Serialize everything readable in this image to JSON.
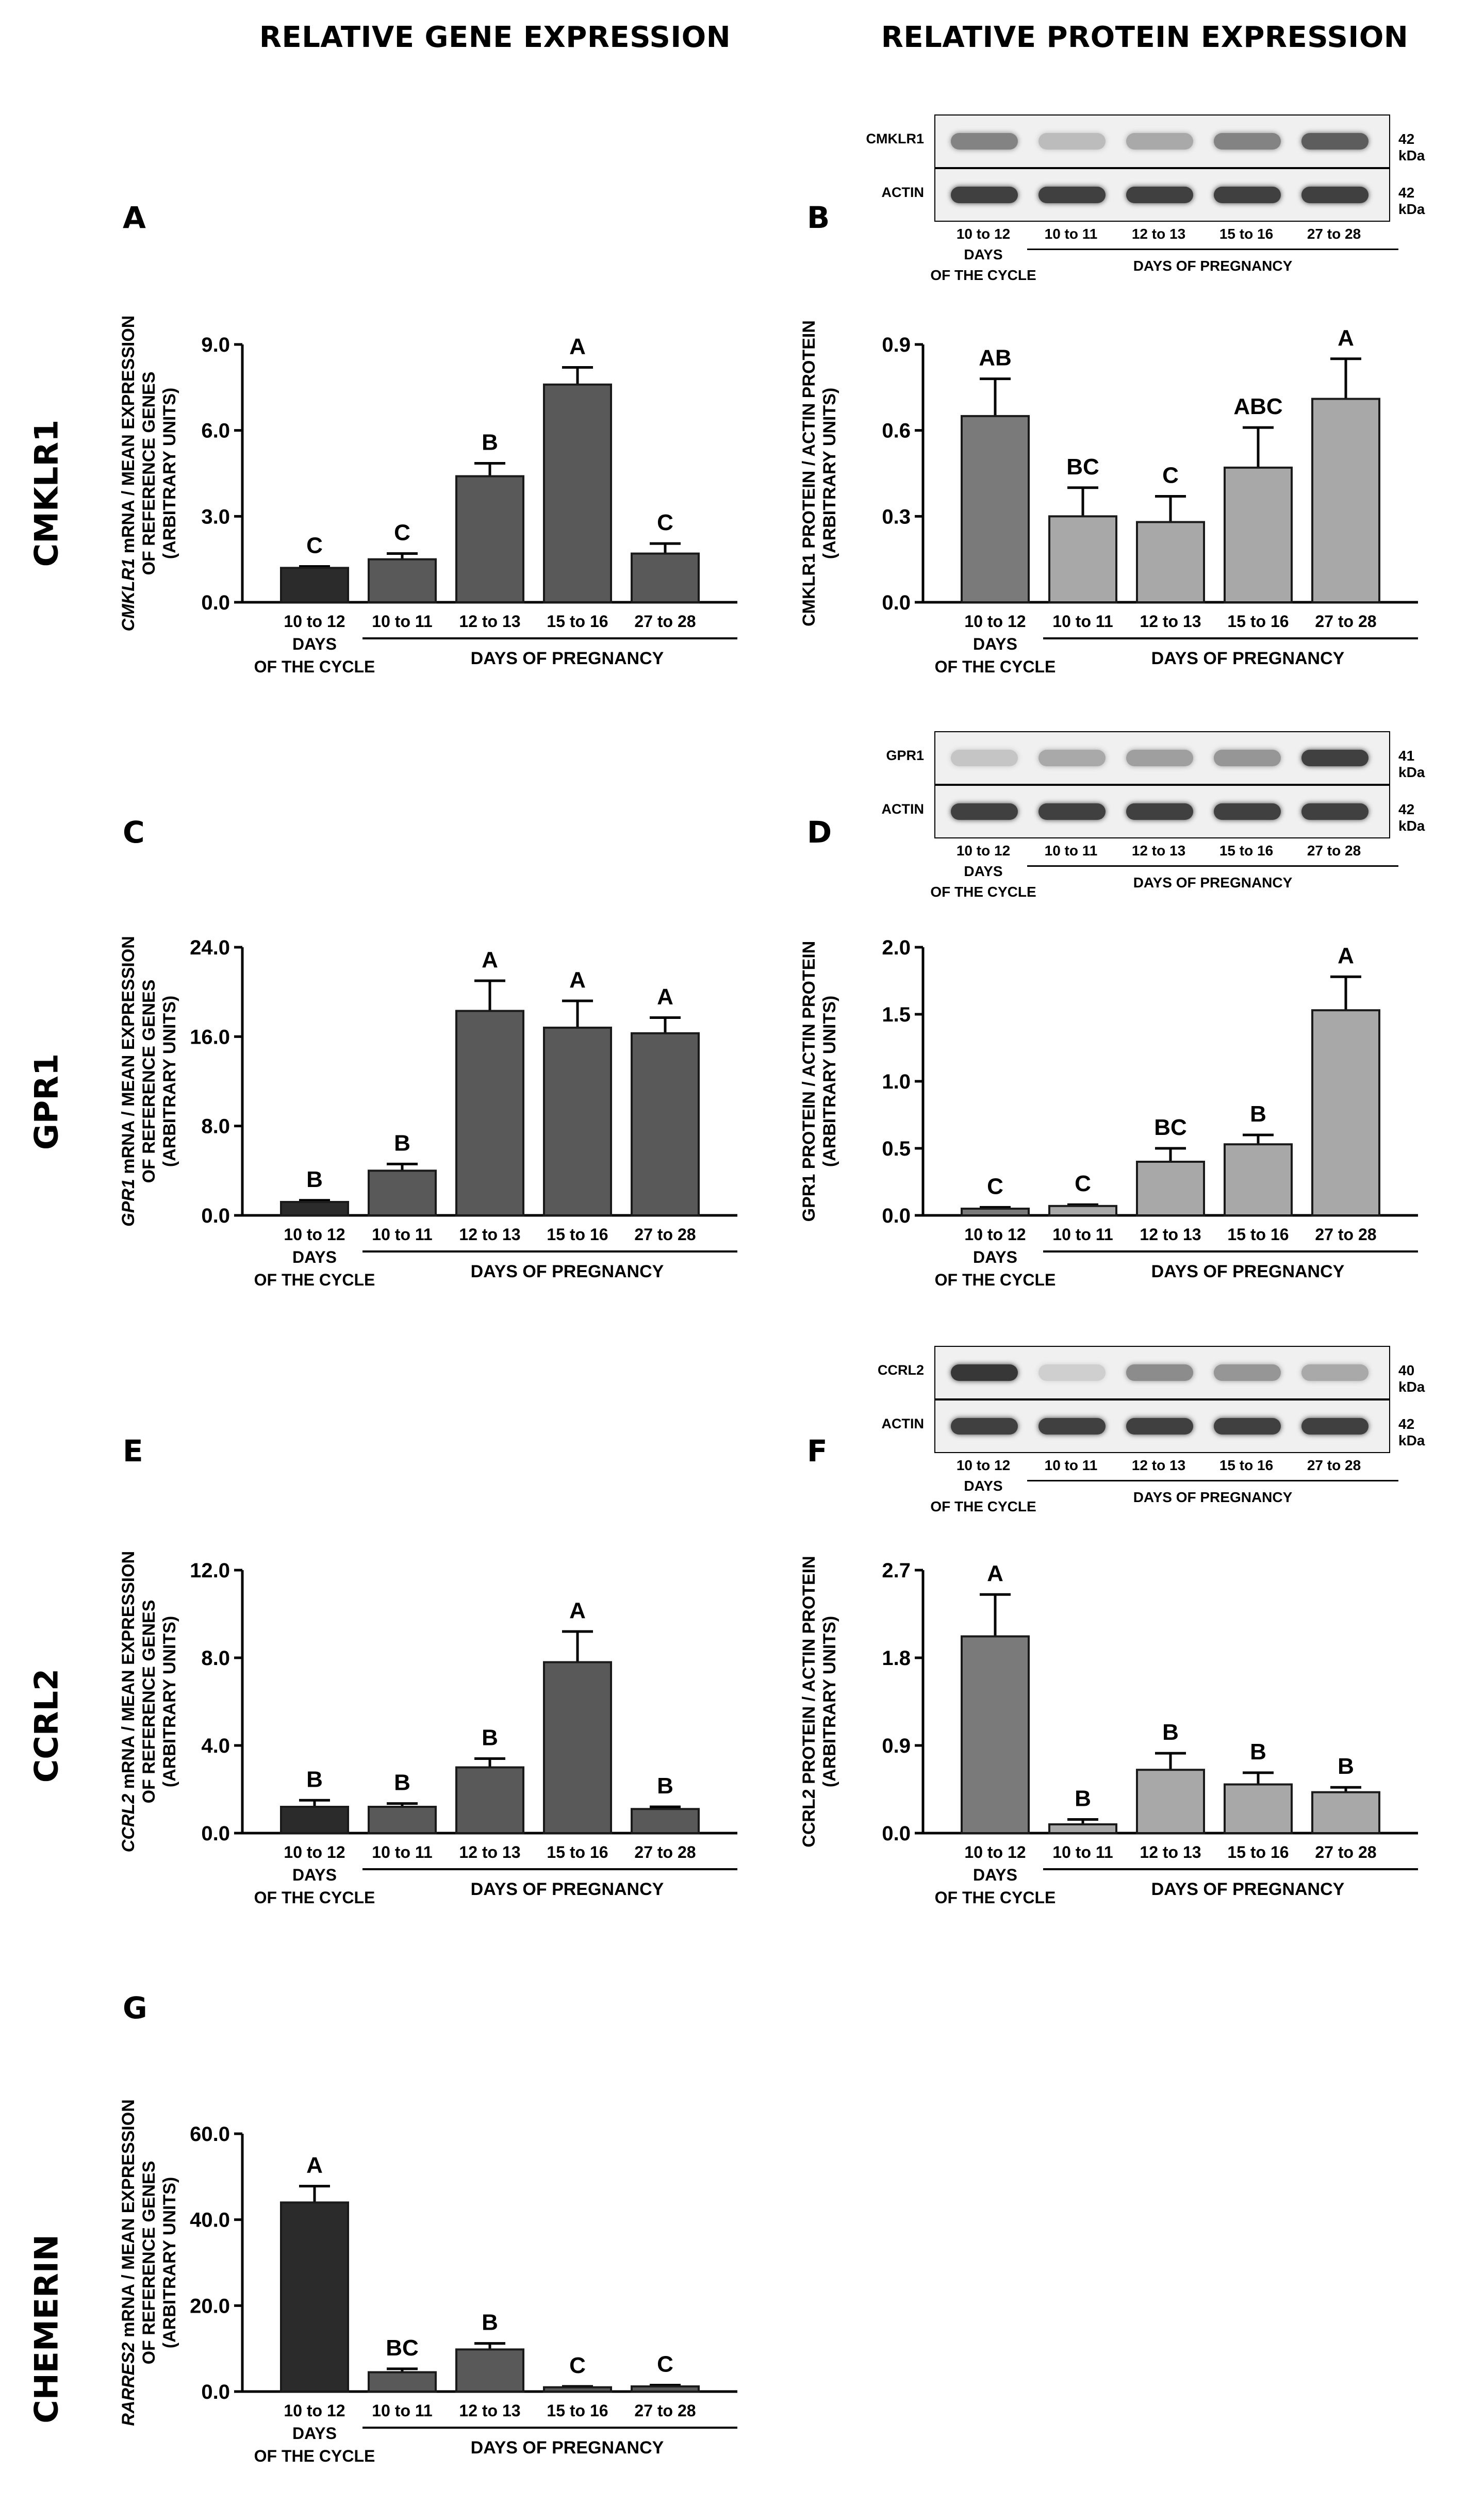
{
  "column_titles": {
    "gene": "RELATIVE GENE EXPRESSION",
    "protein": "RELATIVE PROTEIN EXPRESSION"
  },
  "row_labels": [
    "CMKLR1",
    "GPR1",
    "CCRL2",
    "CHEMERIN"
  ],
  "group_labels": {
    "days": "DAYS",
    "of_the_cycle": "OF THE CYCLE",
    "days_of_pregnancy": "DAYS OF PREGNANCY"
  },
  "colors": {
    "gene_cycle": "#2b2b2b",
    "gene_preg": "#595959",
    "protein_cycle": "#7a7a7a",
    "protein_preg": "#a8a8a8"
  },
  "blots": [
    {
      "id": "B",
      "target": "CMKLR1",
      "target_kda": "42 kDa",
      "actin": "ACTIN",
      "actin_kda": "42 kDa",
      "lanes": [
        "10 to 12",
        "10 to 11",
        "12 to 13",
        "15 to 16",
        "27 to 28"
      ],
      "intensity": [
        0.55,
        0.25,
        0.35,
        0.55,
        0.75
      ]
    },
    {
      "id": "D",
      "target": "GPR1",
      "target_kda": "41 kDa",
      "actin": "ACTIN",
      "actin_kda": "42 kDa",
      "lanes": [
        "10 to 12",
        "10 to 11",
        "12 to 13",
        "15 to 16",
        "27 to 28"
      ],
      "intensity": [
        0.2,
        0.35,
        0.4,
        0.45,
        0.9
      ]
    },
    {
      "id": "F",
      "target": "CCRL2",
      "target_kda": "40 kDa",
      "actin": "ACTIN",
      "actin_kda": "42 kDa",
      "lanes": [
        "10 to 12",
        "10 to 11",
        "12 to 13",
        "15 to 16",
        "27 to 28"
      ],
      "intensity": [
        0.95,
        0.15,
        0.5,
        0.45,
        0.35
      ]
    }
  ],
  "chart_data": [
    {
      "panel": "A",
      "type": "bar",
      "ylabel_italic": "CMKLR1",
      "ylabel_rest": " mRNA / MEAN EXPRESSION",
      "ylabel2": "OF REFERENCE GENES",
      "ylabel3": "(ARBITRARY UNITS)",
      "categories": [
        "10 to 12",
        "10 to 11",
        "12 to 13",
        "15 to 16",
        "27 to 28"
      ],
      "values": [
        1.2,
        1.5,
        4.4,
        7.6,
        1.7
      ],
      "errors": [
        0.05,
        0.2,
        0.45,
        0.6,
        0.35
      ],
      "letters": [
        "C",
        "C",
        "B",
        "A",
        "C"
      ],
      "ylim": [
        0,
        9
      ],
      "ticks": [
        "0.0",
        "3.0",
        "6.0",
        "9.0"
      ],
      "tickvals": [
        0,
        3,
        6,
        9
      ],
      "style": "gene"
    },
    {
      "panel": "B",
      "type": "bar",
      "ylabel_italic": "",
      "ylabel_rest": "CMKLR1 PROTEIN / ACTIN PROTEIN",
      "ylabel2": "(ARBITRARY UNITS)",
      "ylabel3": "",
      "categories": [
        "10 to 12",
        "10 to 11",
        "12 to 13",
        "15 to 16",
        "27 to 28"
      ],
      "values": [
        0.65,
        0.3,
        0.28,
        0.47,
        0.71
      ],
      "errors": [
        0.13,
        0.1,
        0.09,
        0.14,
        0.14
      ],
      "letters": [
        "AB",
        "BC",
        "C",
        "ABC",
        "A"
      ],
      "ylim": [
        0,
        0.9
      ],
      "ticks": [
        "0.0",
        "0.3",
        "0.6",
        "0.9"
      ],
      "tickvals": [
        0,
        0.3,
        0.6,
        0.9
      ],
      "style": "protein"
    },
    {
      "panel": "C",
      "type": "bar",
      "ylabel_italic": "GPR1",
      "ylabel_rest": " mRNA / MEAN EXPRESSION",
      "ylabel2": "OF REFERENCE GENES",
      "ylabel3": "(ARBITRARY UNITS)",
      "categories": [
        "10 to 12",
        "10 to 11",
        "12 to 13",
        "15 to 16",
        "27 to 28"
      ],
      "values": [
        1.2,
        4.0,
        18.3,
        16.8,
        16.3
      ],
      "errors": [
        0.15,
        0.6,
        2.7,
        2.4,
        1.4
      ],
      "letters": [
        "B",
        "B",
        "A",
        "A",
        "A"
      ],
      "ylim": [
        0,
        24
      ],
      "ticks": [
        "0.0",
        "8.0",
        "16.0",
        "24.0"
      ],
      "tickvals": [
        0,
        8,
        16,
        24
      ],
      "style": "gene"
    },
    {
      "panel": "D",
      "type": "bar",
      "ylabel_italic": "",
      "ylabel_rest": "GPR1 PROTEIN / ACTIN PROTEIN",
      "ylabel2": "(ARBITRARY UNITS)",
      "ylabel3": "",
      "categories": [
        "10 to 12",
        "10 to 11",
        "12 to 13",
        "15 to 16",
        "27 to 28"
      ],
      "values": [
        0.05,
        0.07,
        0.4,
        0.53,
        1.53
      ],
      "errors": [
        0.01,
        0.01,
        0.1,
        0.07,
        0.25
      ],
      "letters": [
        "C",
        "C",
        "BC",
        "B",
        "A"
      ],
      "ylim": [
        0,
        2.0
      ],
      "ticks": [
        "0.0",
        "0.5",
        "1.0",
        "1.5",
        "2.0"
      ],
      "tickvals": [
        0,
        0.5,
        1,
        1.5,
        2
      ],
      "style": "protein"
    },
    {
      "panel": "E",
      "type": "bar",
      "ylabel_italic": "CCRL2",
      "ylabel_rest": " mRNA / MEAN EXPRESSION",
      "ylabel2": "OF REFERENCE GENES",
      "ylabel3": "(ARBITRARY UNITS)",
      "categories": [
        "10 to 12",
        "10 to 11",
        "12 to 13",
        "15 to 16",
        "27 to 28"
      ],
      "values": [
        1.2,
        1.2,
        3.0,
        7.8,
        1.1
      ],
      "errors": [
        0.3,
        0.15,
        0.4,
        1.4,
        0.1
      ],
      "letters": [
        "B",
        "B",
        "B",
        "A",
        "B"
      ],
      "ylim": [
        0,
        12
      ],
      "ticks": [
        "0.0",
        "4.0",
        "8.0",
        "12.0"
      ],
      "tickvals": [
        0,
        4,
        8,
        12
      ],
      "style": "gene"
    },
    {
      "panel": "F",
      "type": "bar",
      "ylabel_italic": "",
      "ylabel_rest": "CCRL2 PROTEIN / ACTIN PROTEIN",
      "ylabel2": "(ARBITRARY UNITS)",
      "ylabel3": "",
      "categories": [
        "10 to 12",
        "10 to 11",
        "12 to 13",
        "15 to 16",
        "27 to 28"
      ],
      "values": [
        2.02,
        0.09,
        0.65,
        0.5,
        0.42
      ],
      "errors": [
        0.43,
        0.05,
        0.17,
        0.12,
        0.05
      ],
      "letters": [
        "A",
        "B",
        "B",
        "B",
        "B"
      ],
      "ylim": [
        0,
        2.7
      ],
      "ticks": [
        "0.0",
        "0.9",
        "1.8",
        "2.7"
      ],
      "tickvals": [
        0,
        0.9,
        1.8,
        2.7
      ],
      "style": "protein"
    },
    {
      "panel": "G",
      "type": "bar",
      "ylabel_italic": "RARRES2",
      "ylabel_rest": " mRNA / MEAN EXPRESSION",
      "ylabel2": "OF REFERENCE GENES",
      "ylabel3": "(ARBITRARY UNITS)",
      "categories": [
        "10 to 12",
        "10 to 11",
        "12 to 13",
        "15 to 16",
        "27 to 28"
      ],
      "values": [
        44.0,
        4.5,
        9.8,
        1.0,
        1.2
      ],
      "errors": [
        3.8,
        0.8,
        1.4,
        0.2,
        0.3
      ],
      "letters": [
        "A",
        "BC",
        "B",
        "C",
        "C"
      ],
      "ylim": [
        0,
        60
      ],
      "ticks": [
        "0.0",
        "20.0",
        "40.0",
        "60.0"
      ],
      "tickvals": [
        0,
        20,
        40,
        60
      ],
      "style": "gene"
    }
  ]
}
